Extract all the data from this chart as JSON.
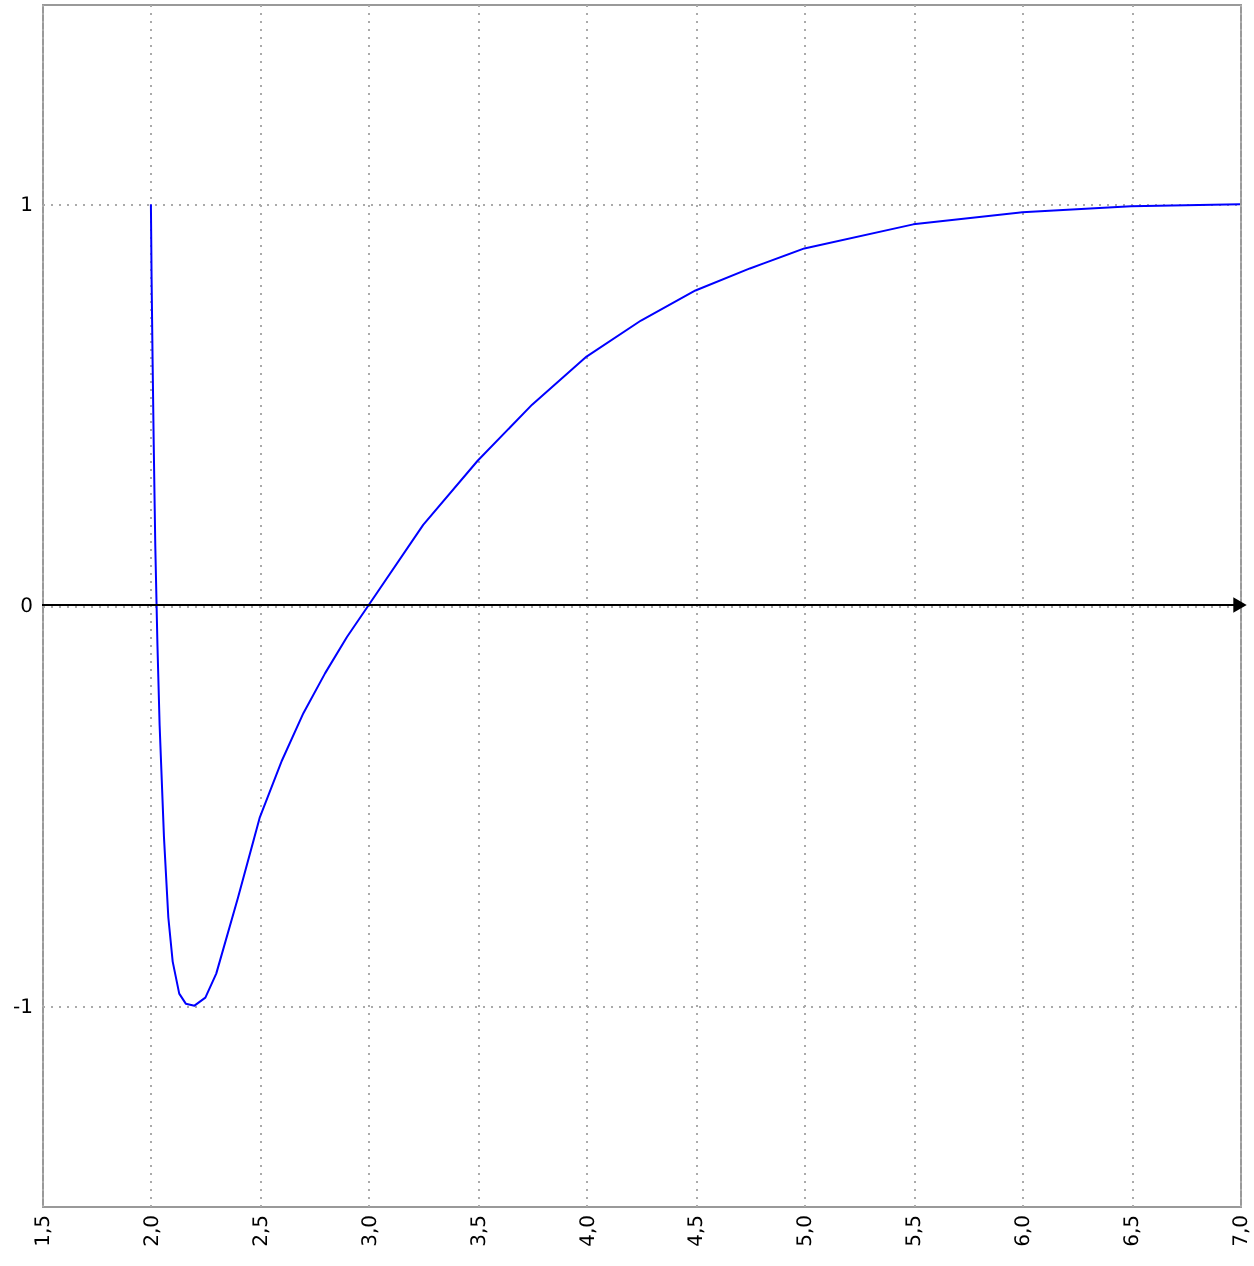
{
  "chart_data": {
    "type": "line",
    "x": [
      2.0,
      2.003,
      2.008,
      2.013,
      2.02,
      2.03,
      2.04,
      2.06,
      2.08,
      2.1,
      2.13,
      2.16,
      2.2,
      2.25,
      2.3,
      2.4,
      2.5,
      2.6,
      2.7,
      2.8,
      2.9,
      3.0,
      3.25,
      3.5,
      3.75,
      4.0,
      4.25,
      4.5,
      4.75,
      5.0,
      5.5,
      6.0,
      6.5,
      7.0
    ],
    "series": [
      {
        "color": "#0000ff",
        "values": [
          1.0,
          0.82,
          0.6,
          0.4,
          0.15,
          -0.1,
          -0.3,
          -0.58,
          -0.78,
          -0.89,
          -0.97,
          -0.995,
          -1.0,
          -0.98,
          -0.92,
          -0.73,
          -0.53,
          -0.39,
          -0.27,
          -0.17,
          -0.08,
          0.0,
          0.2,
          0.36,
          0.5,
          0.62,
          0.71,
          0.785,
          0.84,
          0.89,
          0.95,
          0.98,
          0.995,
          1.0
        ]
      }
    ],
    "xlim": [
      1.5,
      7.0
    ],
    "xticks": [
      {
        "value": 1.5,
        "label": "1,5"
      },
      {
        "value": 2.0,
        "label": "2,0"
      },
      {
        "value": 2.5,
        "label": "2,5"
      },
      {
        "value": 3.0,
        "label": "3,0"
      },
      {
        "value": 3.5,
        "label": "3,5"
      },
      {
        "value": 4.0,
        "label": "4,0"
      },
      {
        "value": 4.5,
        "label": "4,5"
      },
      {
        "value": 5.0,
        "label": "5,0"
      },
      {
        "value": 5.5,
        "label": "5,5"
      },
      {
        "value": 6.0,
        "label": "6,0"
      },
      {
        "value": 6.5,
        "label": "6,5"
      },
      {
        "value": 7.0,
        "label": "7,0"
      }
    ],
    "ylim": [
      -1.5,
      1.5
    ],
    "yticks": [
      -1,
      0,
      1
    ],
    "ref_lines": [
      {
        "axis": "y",
        "value": 0,
        "color": "#000000"
      }
    ],
    "grid": true
  }
}
